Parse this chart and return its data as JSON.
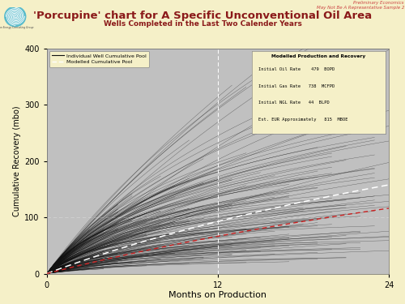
{
  "title": "'Porcupine' chart for A Specific Unconventional Oil Area",
  "subtitle": "Wells Completed in the Last Two Calender Years",
  "top_right_line1": "Preliminary Economics",
  "top_right_line2": "May Not Be A Representative Sample 2",
  "xlabel": "Months on Production",
  "ylabel": "Cumulative Recovery (mbo)",
  "xlim": [
    0,
    24
  ],
  "ylim": [
    0,
    400
  ],
  "xticks": [
    0,
    12,
    24
  ],
  "yticks": [
    0,
    100,
    200,
    300,
    400
  ],
  "bg_color": "#f5f0c8",
  "plot_bg_color": "#c0c0c0",
  "title_color": "#8b1a1a",
  "subtitle_color": "#8b1a1a",
  "top_right_color": "#cc4444",
  "individual_line_color": "#111111",
  "modeled_line_color": "#ffffff",
  "dashed_line_color": "#cc2222",
  "legend_box_color": "#f5f0c8",
  "info_box_title": "Modelled Production and Recovery",
  "info_box_items": [
    "Initial Oil Rate    479  BOPD",
    "Initial Gas Rate   738  MCFPD",
    "Initial NGL Rate   44  BLPD",
    "Est. EUR Approximately   815  MBOE"
  ],
  "num_wells": 250,
  "max_months": 24,
  "seed": 42
}
